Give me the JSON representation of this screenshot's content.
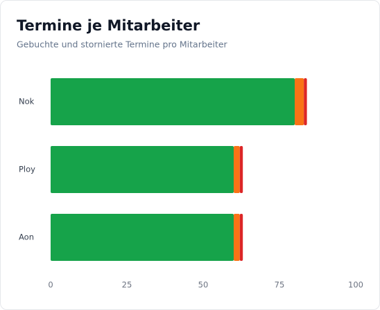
{
  "chart_data": {
    "type": "stacked-bar-horizontal",
    "title": "Termine je Mitarbeiter",
    "subtitle": "Gebuchte und stornierte Termine pro Mitarbeiter",
    "categories": [
      "Nok",
      "Ploy",
      "Aon"
    ],
    "series": [
      {
        "color": "#16a34a",
        "values": [
          80,
          60,
          60
        ]
      },
      {
        "color": "#f97316",
        "values": [
          3,
          2,
          2
        ]
      },
      {
        "color": "#dc2626",
        "values": [
          1,
          1,
          1
        ]
      }
    ],
    "xlim": [
      0,
      100
    ],
    "xticks": [
      0,
      25,
      50,
      75,
      100
    ],
    "grid": false
  }
}
